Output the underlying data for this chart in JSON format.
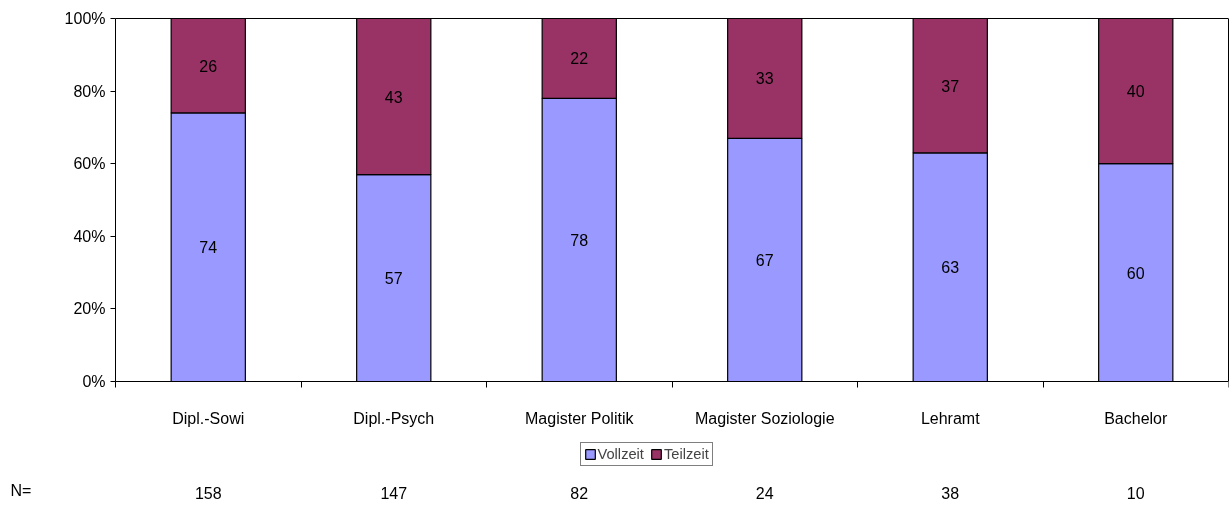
{
  "chart_data": {
    "type": "bar",
    "stacked": true,
    "data_labels": true,
    "legend": "bottom",
    "categories": [
      "Dipl.-Sowi",
      "Dipl.-Psych",
      "Magister Politik",
      "Magister Soziologie",
      "Lehramt",
      "Bachelor"
    ],
    "series": [
      {
        "name": "Vollzeit",
        "color": "#9999ff",
        "values": [
          74,
          57,
          78,
          67,
          63,
          60
        ]
      },
      {
        "name": "Teilzeit",
        "color": "#993366",
        "values": [
          26,
          43,
          22,
          33,
          37,
          40
        ]
      }
    ],
    "ylim": [
      0,
      100
    ],
    "yticks": [
      {
        "value": 0,
        "label": "0%"
      },
      {
        "value": 20,
        "label": "20%"
      },
      {
        "value": 40,
        "label": "40%"
      },
      {
        "value": 60,
        "label": "60%"
      },
      {
        "value": 80,
        "label": "80%"
      },
      {
        "value": 100,
        "label": "100%"
      }
    ],
    "annotations": [
      "N=",
      "158",
      "147",
      "82",
      "24",
      "38",
      "10"
    ]
  }
}
